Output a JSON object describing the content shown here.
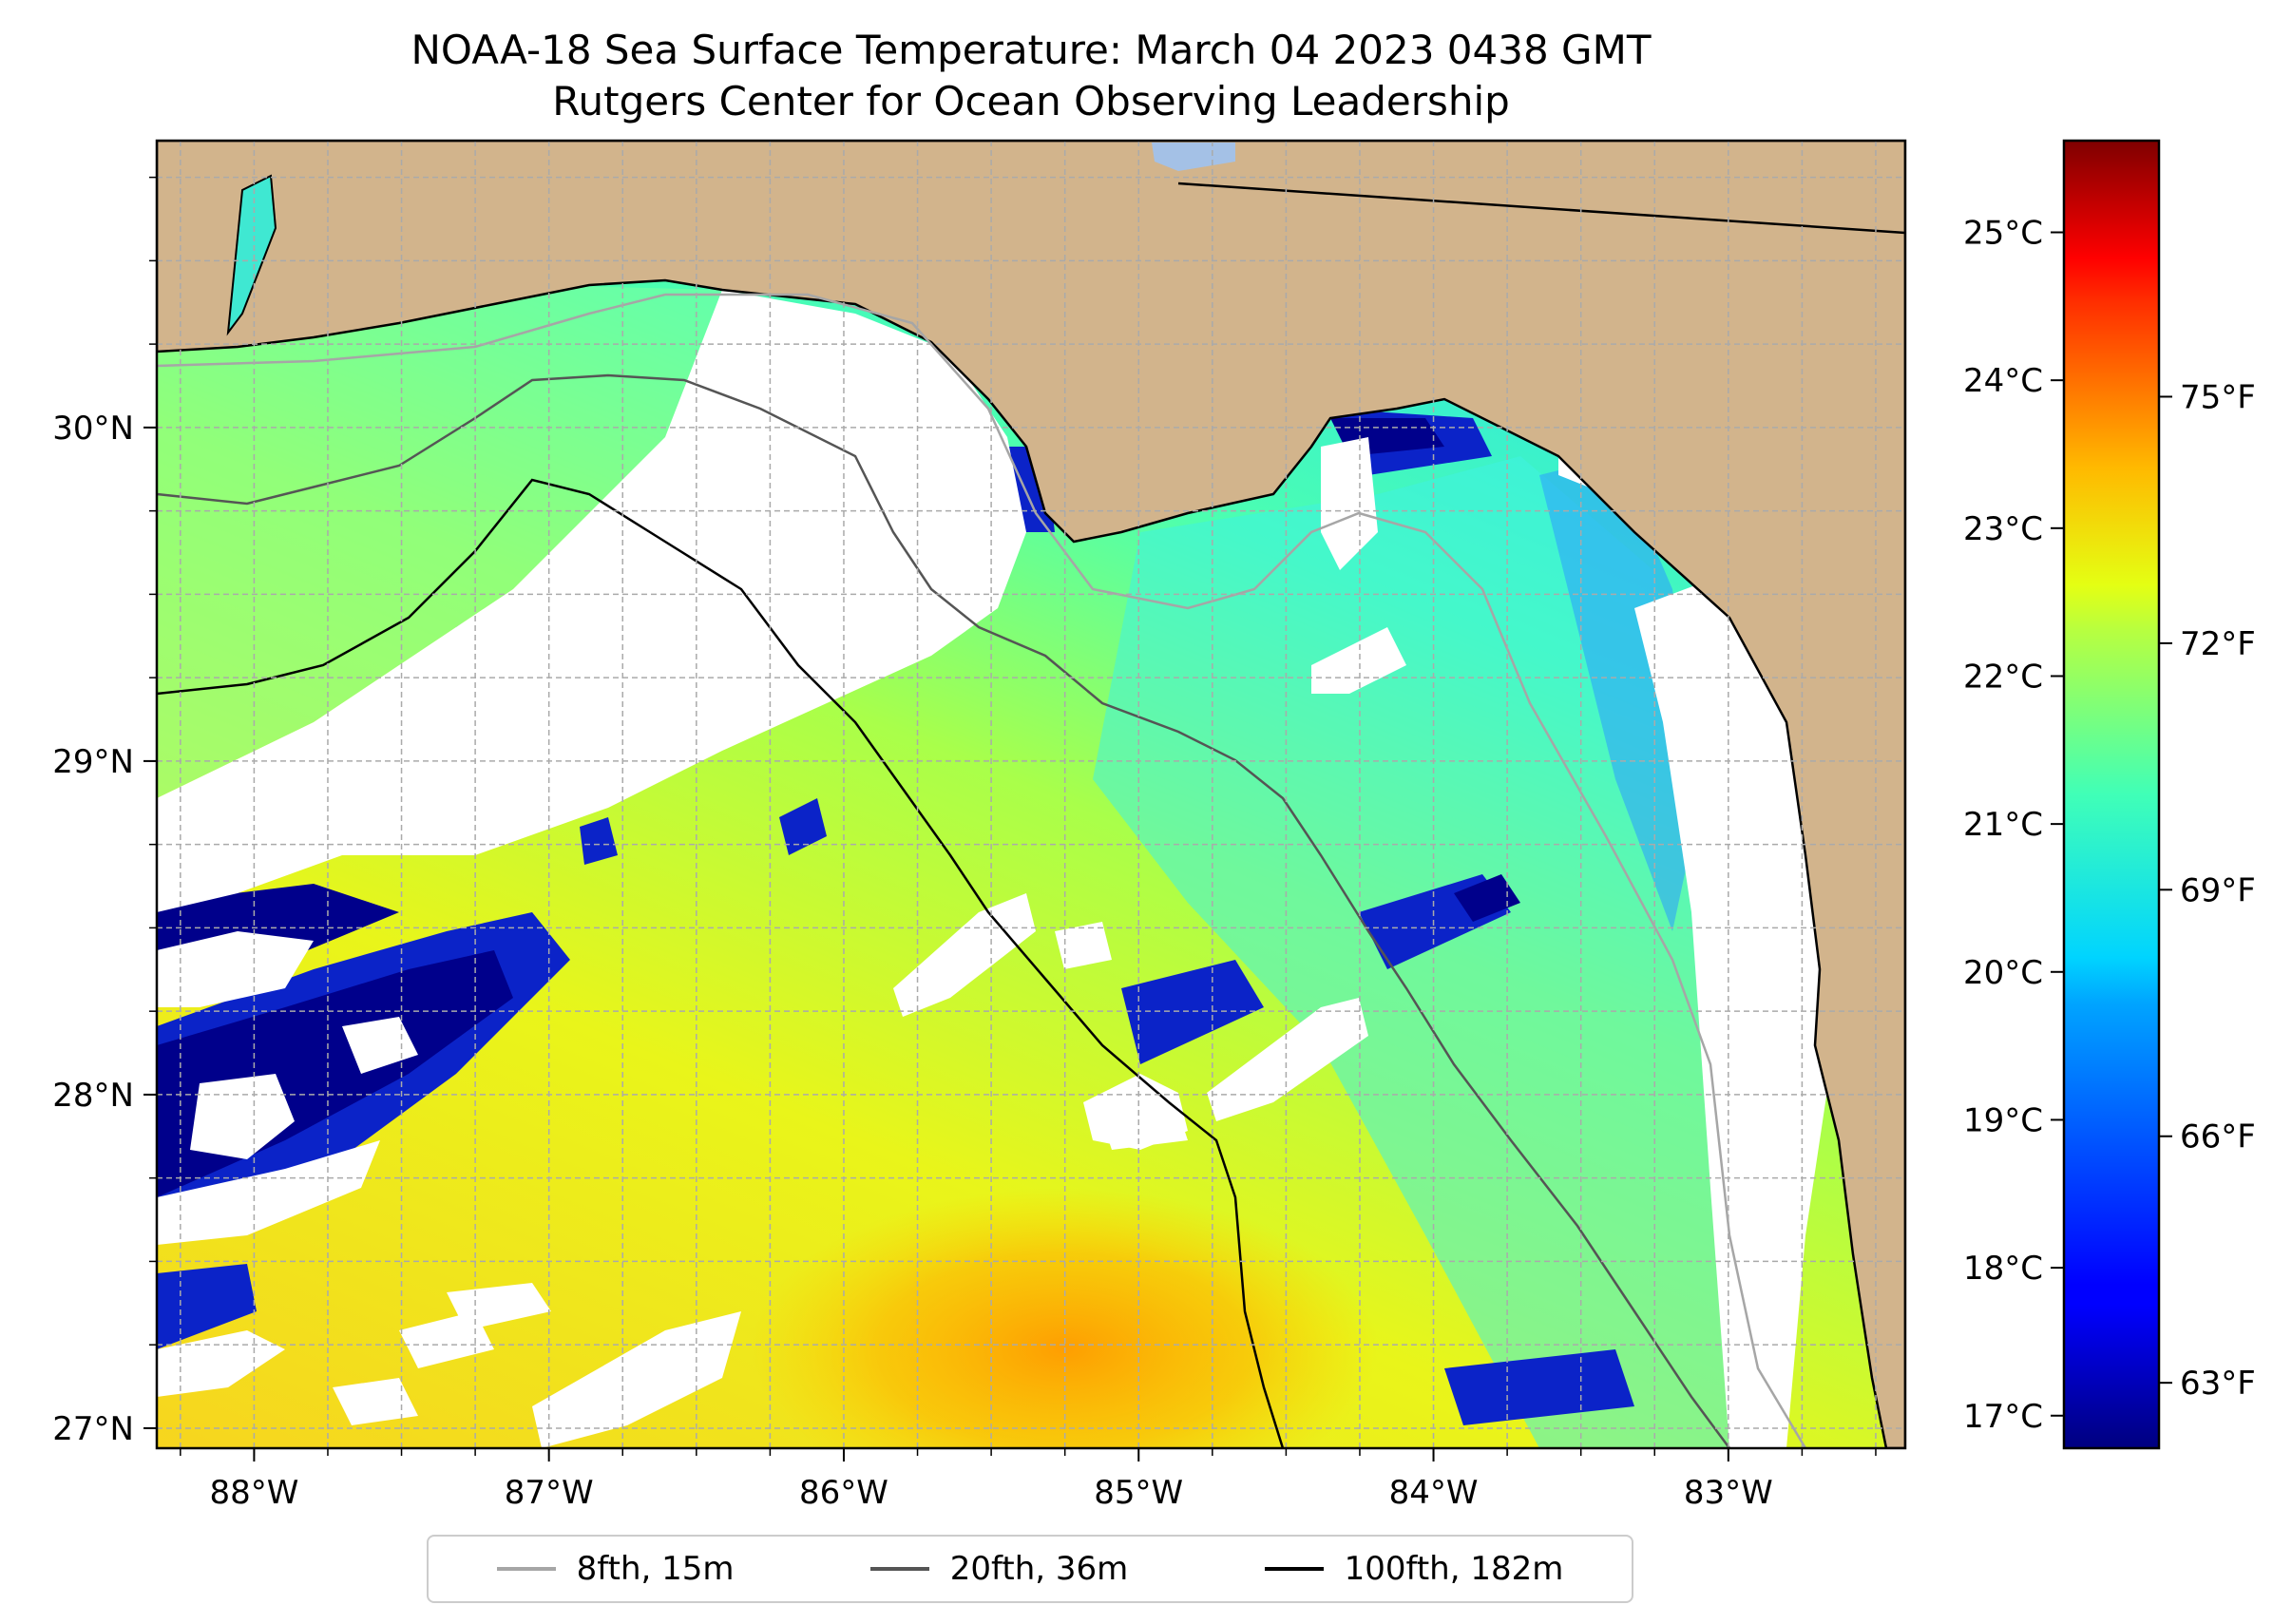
{
  "title": {
    "line1": "NOAA-18 Sea Surface Temperature: March 04 2023 0438 GMT",
    "line2": "Rutgers Center for Ocean Observing Leadership"
  },
  "map": {
    "lon_range": [
      -88.33,
      -82.4
    ],
    "lat_range": [
      26.94,
      30.86
    ],
    "lon_ticks": [
      {
        "v": -88,
        "label": "88°W"
      },
      {
        "v": -87,
        "label": "87°W"
      },
      {
        "v": -86,
        "label": "86°W"
      },
      {
        "v": -85,
        "label": "85°W"
      },
      {
        "v": -84,
        "label": "84°W"
      },
      {
        "v": -83,
        "label": "83°W"
      }
    ],
    "lat_ticks": [
      {
        "v": 27,
        "label": "27°N"
      },
      {
        "v": 28,
        "label": "28°N"
      },
      {
        "v": 29,
        "label": "29°N"
      },
      {
        "v": 30,
        "label": "30°N"
      }
    ],
    "gridlines": true,
    "colors": {
      "land": "#d2b48c",
      "no_data": "#ffffff",
      "coast": "#000000",
      "grid": "#aaaaaa"
    }
  },
  "colorbar": {
    "colormap": "jet",
    "celsius_ticks": [
      "17°C",
      "18°C",
      "19°C",
      "20°C",
      "21°C",
      "22°C",
      "23°C",
      "24°C",
      "25°C"
    ],
    "celsius_values": [
      17,
      18,
      19,
      20,
      21,
      22,
      23,
      24,
      25
    ],
    "fahrenheit_ticks": [
      "63°F",
      "66°F",
      "69°F",
      "72°F",
      "75°F"
    ],
    "fahrenheit_values": [
      63,
      66,
      69,
      72,
      75
    ],
    "min_c": 16.78,
    "max_c": 25.62
  },
  "legend": {
    "items": [
      {
        "label": "8fth, 15m",
        "color": "#a6a6a6"
      },
      {
        "label": "20fth, 36m",
        "color": "#555555"
      },
      {
        "label": "100fth, 182m",
        "color": "#000000"
      }
    ]
  }
}
